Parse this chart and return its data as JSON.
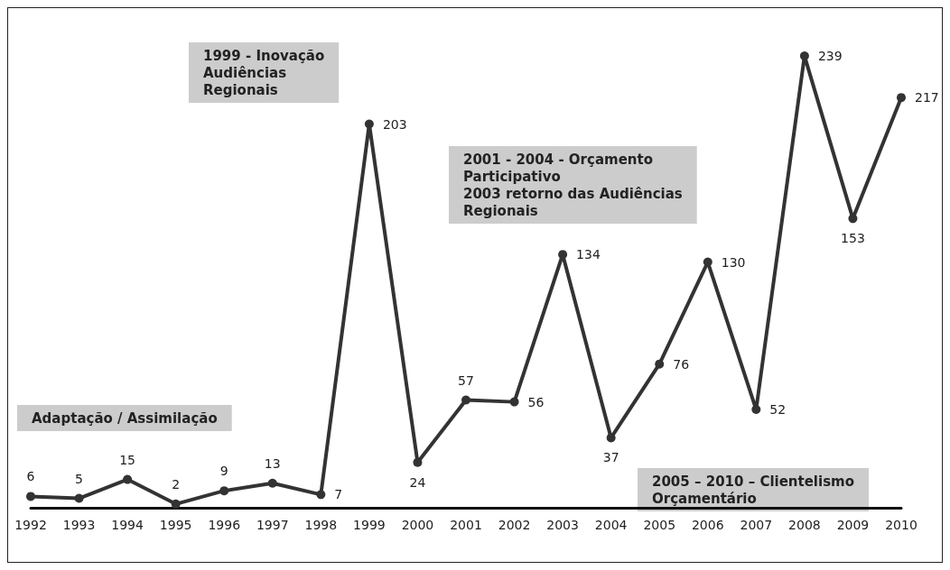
{
  "chart_data": {
    "type": "line",
    "categories": [
      "1992",
      "1993",
      "1994",
      "1995",
      "1996",
      "1997",
      "1998",
      "1999",
      "2000",
      "2001",
      "2002",
      "2003",
      "2004",
      "2005",
      "2006",
      "2007",
      "2008",
      "2009",
      "2010"
    ],
    "series": [
      {
        "color": "#333333",
        "values": [
          6,
          5,
          15,
          2,
          9,
          13,
          7,
          203,
          24,
          57,
          56,
          134,
          37,
          76,
          130,
          52,
          239,
          153,
          217
        ]
      }
    ],
    "data_labels": true,
    "marker": "circle",
    "line_style": "solid",
    "grid": false,
    "tick_labels": "x",
    "annotations": [
      "1999 - Inovação\nAudiências\nRegionais",
      "2001 - 2004 - Orçamento\nParticipativo\n2003 retorno das Audiências\nRegionais",
      "Adaptação / Assimilação",
      "2005 – 2010 – Clientelismo\nOrçamentário"
    ]
  }
}
